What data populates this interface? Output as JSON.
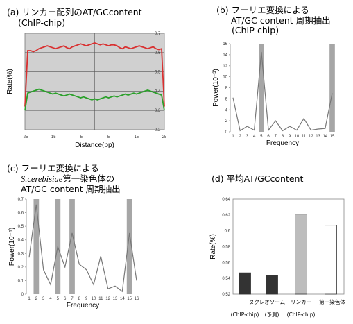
{
  "panels": {
    "a": {
      "title_line1": "(a) リンカー配列のAT/GCcontent",
      "title_line2": "(ChIP-chip)"
    },
    "b": {
      "title_line1": "(b) フーリエ変換による",
      "title_line2": "AT/GC content 周期抽出",
      "title_line3": "(ChIP-chip)"
    },
    "c": {
      "title_line1": "(c) フーリエ変換による",
      "title_line2_italic": "S.cerebisiae",
      "title_line2_rest": "第一染色体の",
      "title_line3": "AT/GC content 周期抽出"
    },
    "d": {
      "title_line1": "(d) 平均AT/GCcontent"
    }
  },
  "colors": {
    "panel_a_background": "#d0d0d0",
    "panel_a_red_series": "#d93030",
    "panel_a_green_series": "#2aa02a",
    "highlight_band": "#a6a6a6",
    "bar_dark": "#333333",
    "bar_gray": "#bdbdbd",
    "bar_white": "#ffffff"
  },
  "chart_data": [
    {
      "panel": "a",
      "type": "line",
      "xlabel": "Distance(bp)",
      "ylabel": "Rate(%)",
      "xlim": [
        -25,
        25
      ],
      "ylim": [
        0.2,
        0.7
      ],
      "x_ticks": [
        "-25",
        "-15",
        "-5",
        "5",
        "15",
        "25"
      ],
      "y_ticks": [
        "0.2",
        "0.3",
        "0.4",
        "0.5",
        "0.6",
        "0.7"
      ],
      "grid": true,
      "x": [
        -25,
        -24,
        -23,
        -22,
        -21,
        -20,
        -19,
        -18,
        -17,
        -16,
        -15,
        -14,
        -13,
        -12,
        -11,
        -10,
        -9,
        -8,
        -7,
        -6,
        -5,
        -4,
        -3,
        -2,
        -1,
        0,
        1,
        2,
        3,
        4,
        5,
        6,
        7,
        8,
        9,
        10,
        11,
        12,
        13,
        14,
        15,
        16,
        17,
        18,
        19,
        20,
        21,
        22,
        23,
        24,
        25
      ],
      "series": [
        {
          "color": "red",
          "values": [
            0.32,
            0.61,
            0.61,
            0.605,
            0.61,
            0.62,
            0.625,
            0.63,
            0.635,
            0.63,
            0.625,
            0.62,
            0.625,
            0.63,
            0.635,
            0.625,
            0.62,
            0.63,
            0.635,
            0.64,
            0.645,
            0.64,
            0.635,
            0.64,
            0.645,
            0.65,
            0.645,
            0.64,
            0.645,
            0.64,
            0.635,
            0.64,
            0.64,
            0.635,
            0.625,
            0.62,
            0.63,
            0.625,
            0.62,
            0.625,
            0.63,
            0.635,
            0.63,
            0.625,
            0.62,
            0.625,
            0.63,
            0.62,
            0.615,
            0.62,
            0.32
          ]
        },
        {
          "color": "green",
          "values": [
            0.3,
            0.39,
            0.395,
            0.4,
            0.405,
            0.41,
            0.405,
            0.4,
            0.395,
            0.39,
            0.385,
            0.39,
            0.385,
            0.38,
            0.375,
            0.38,
            0.385,
            0.38,
            0.375,
            0.37,
            0.365,
            0.37,
            0.365,
            0.36,
            0.355,
            0.36,
            0.355,
            0.36,
            0.365,
            0.37,
            0.365,
            0.37,
            0.375,
            0.37,
            0.375,
            0.38,
            0.385,
            0.38,
            0.385,
            0.39,
            0.385,
            0.39,
            0.395,
            0.4,
            0.405,
            0.4,
            0.395,
            0.39,
            0.385,
            0.38,
            0.3
          ]
        }
      ]
    },
    {
      "panel": "b",
      "type": "line",
      "xlabel": "Frequency",
      "ylabel": "Power(10⁻³)",
      "ylim": [
        0,
        16
      ],
      "y_ticks": [
        "0",
        "2",
        "4",
        "6",
        "8",
        "10",
        "12",
        "14",
        "16"
      ],
      "x_ticks": [
        "1",
        "2",
        "3",
        "4",
        "5",
        "6",
        "7",
        "8",
        "9",
        "10",
        "11",
        "12",
        "13",
        "14",
        "15"
      ],
      "x": [
        1,
        2,
        3,
        4,
        5,
        6,
        7,
        8,
        9,
        10,
        11,
        12,
        13,
        14,
        15
      ],
      "values": [
        6.2,
        0.2,
        1.0,
        0.3,
        14.5,
        0.3,
        2.0,
        0.2,
        1.0,
        0.3,
        2.4,
        0.3,
        0.5,
        0.6,
        7.0
      ],
      "highlight_x": [
        5,
        15
      ]
    },
    {
      "panel": "c",
      "type": "line",
      "xlabel": "Frequency",
      "ylabel": "Power(10⁻⁶)",
      "ylim": [
        0,
        0.7
      ],
      "y_ticks": [
        "0",
        "0.1",
        "0.2",
        "0.3",
        "0.4",
        "0.5",
        "0.6",
        "0.7"
      ],
      "x_ticks": [
        "1",
        "2",
        "3",
        "4",
        "5",
        "6",
        "7",
        "8",
        "9",
        "10",
        "11",
        "12",
        "13",
        "14",
        "15",
        "16"
      ],
      "x": [
        1,
        2,
        3,
        4,
        5,
        6,
        7,
        8,
        9,
        10,
        11,
        12,
        13,
        14,
        15,
        16
      ],
      "values": [
        0.27,
        0.66,
        0.18,
        0.07,
        0.35,
        0.2,
        0.45,
        0.22,
        0.18,
        0.07,
        0.28,
        0.04,
        0.06,
        0.02,
        0.45,
        0.1
      ],
      "highlight_x": [
        2,
        5,
        7,
        15
      ]
    },
    {
      "panel": "d",
      "type": "bar",
      "ylabel": "Rate(%)",
      "ylim": [
        0.52,
        0.64
      ],
      "y_ticks": [
        "0.52",
        "0.54",
        "0.56",
        "0.58",
        "0.6",
        "0.62",
        "0.64"
      ],
      "categories": [
        {
          "line1": "ヌクレオソーム",
          "line2": "(ChIP-chip)"
        },
        {
          "line1": "",
          "line2": "(予測)"
        },
        {
          "line1": "リンカー",
          "line2": "(ChIP-chip)"
        },
        {
          "line1": "第一染色体",
          "line2": ""
        }
      ],
      "values": [
        0.547,
        0.544,
        0.621,
        0.607
      ],
      "bar_colors": [
        "dark",
        "dark",
        "gray",
        "white"
      ]
    }
  ]
}
